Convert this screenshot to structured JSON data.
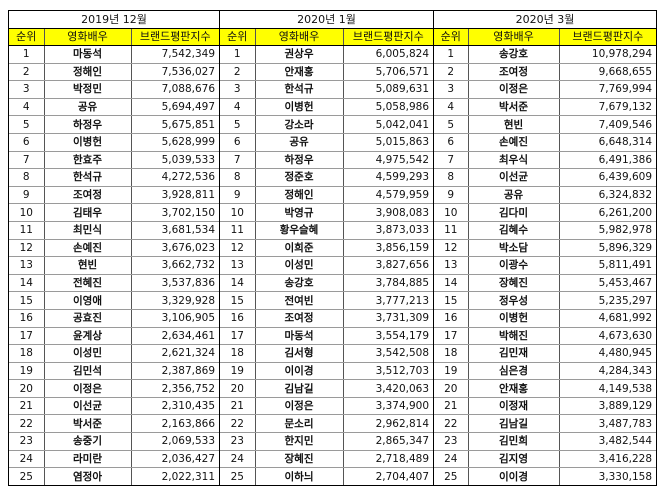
{
  "headers": {
    "rank": "순위",
    "actor": "영화배우",
    "index": "브랜드평판지수"
  },
  "colors": {
    "header_bg": "#FFFF00"
  },
  "tables": [
    {
      "title": "2019년 12월",
      "rows": [
        {
          "rank": "1",
          "name": "마동석",
          "value": "7,542,349"
        },
        {
          "rank": "2",
          "name": "정해인",
          "value": "7,536,027"
        },
        {
          "rank": "3",
          "name": "박정민",
          "value": "7,088,676"
        },
        {
          "rank": "4",
          "name": "공유",
          "value": "5,694,497"
        },
        {
          "rank": "5",
          "name": "하정우",
          "value": "5,675,851"
        },
        {
          "rank": "6",
          "name": "이병헌",
          "value": "5,628,999"
        },
        {
          "rank": "7",
          "name": "한효주",
          "value": "5,039,533"
        },
        {
          "rank": "8",
          "name": "한석규",
          "value": "4,272,536"
        },
        {
          "rank": "9",
          "name": "조여정",
          "value": "3,928,811"
        },
        {
          "rank": "10",
          "name": "김태우",
          "value": "3,702,150"
        },
        {
          "rank": "11",
          "name": "최민식",
          "value": "3,681,534"
        },
        {
          "rank": "12",
          "name": "손예진",
          "value": "3,676,023"
        },
        {
          "rank": "13",
          "name": "현빈",
          "value": "3,662,732"
        },
        {
          "rank": "14",
          "name": "전혜진",
          "value": "3,537,836"
        },
        {
          "rank": "15",
          "name": "이영애",
          "value": "3,329,928"
        },
        {
          "rank": "16",
          "name": "공효진",
          "value": "3,106,905"
        },
        {
          "rank": "17",
          "name": "윤계상",
          "value": "2,634,461"
        },
        {
          "rank": "18",
          "name": "이성민",
          "value": "2,621,324"
        },
        {
          "rank": "19",
          "name": "김민석",
          "value": "2,387,869"
        },
        {
          "rank": "20",
          "name": "이정은",
          "value": "2,356,752"
        },
        {
          "rank": "21",
          "name": "이선균",
          "value": "2,310,435"
        },
        {
          "rank": "22",
          "name": "박서준",
          "value": "2,163,866"
        },
        {
          "rank": "23",
          "name": "송중기",
          "value": "2,069,533"
        },
        {
          "rank": "24",
          "name": "라미란",
          "value": "2,036,427"
        },
        {
          "rank": "25",
          "name": "염정아",
          "value": "2,022,311"
        }
      ]
    },
    {
      "title": "2020년 1월",
      "rows": [
        {
          "rank": "1",
          "name": "권상우",
          "value": "6,005,824"
        },
        {
          "rank": "2",
          "name": "안재홍",
          "value": "5,706,571"
        },
        {
          "rank": "3",
          "name": "한석규",
          "value": "5,089,631"
        },
        {
          "rank": "4",
          "name": "이병헌",
          "value": "5,058,986"
        },
        {
          "rank": "5",
          "name": "강소라",
          "value": "5,042,041"
        },
        {
          "rank": "6",
          "name": "공유",
          "value": "5,015,863"
        },
        {
          "rank": "7",
          "name": "하정우",
          "value": "4,975,542"
        },
        {
          "rank": "8",
          "name": "정준호",
          "value": "4,599,293"
        },
        {
          "rank": "9",
          "name": "정해인",
          "value": "4,579,959"
        },
        {
          "rank": "10",
          "name": "박영규",
          "value": "3,908,083"
        },
        {
          "rank": "11",
          "name": "황우슬혜",
          "value": "3,873,033"
        },
        {
          "rank": "12",
          "name": "이희준",
          "value": "3,856,159"
        },
        {
          "rank": "13",
          "name": "이성민",
          "value": "3,827,656"
        },
        {
          "rank": "14",
          "name": "송강호",
          "value": "3,784,885"
        },
        {
          "rank": "15",
          "name": "전여빈",
          "value": "3,777,213"
        },
        {
          "rank": "16",
          "name": "조여정",
          "value": "3,731,309"
        },
        {
          "rank": "17",
          "name": "마동석",
          "value": "3,554,179"
        },
        {
          "rank": "18",
          "name": "김서형",
          "value": "3,542,508"
        },
        {
          "rank": "19",
          "name": "이이경",
          "value": "3,512,703"
        },
        {
          "rank": "20",
          "name": "김남길",
          "value": "3,420,063"
        },
        {
          "rank": "21",
          "name": "이정은",
          "value": "3,374,900"
        },
        {
          "rank": "22",
          "name": "문소리",
          "value": "2,962,814"
        },
        {
          "rank": "23",
          "name": "한지민",
          "value": "2,865,347"
        },
        {
          "rank": "24",
          "name": "장혜진",
          "value": "2,718,489"
        },
        {
          "rank": "25",
          "name": "이하늬",
          "value": "2,704,407"
        }
      ]
    },
    {
      "title": "2020년 3월",
      "rows": [
        {
          "rank": "1",
          "name": "송강호",
          "value": "10,978,294"
        },
        {
          "rank": "2",
          "name": "조여정",
          "value": "9,668,655"
        },
        {
          "rank": "3",
          "name": "이정은",
          "value": "7,769,994"
        },
        {
          "rank": "4",
          "name": "박서준",
          "value": "7,679,132"
        },
        {
          "rank": "5",
          "name": "현빈",
          "value": "7,409,546"
        },
        {
          "rank": "6",
          "name": "손예진",
          "value": "6,648,314"
        },
        {
          "rank": "7",
          "name": "최우식",
          "value": "6,491,386"
        },
        {
          "rank": "8",
          "name": "이선균",
          "value": "6,439,609"
        },
        {
          "rank": "9",
          "name": "공유",
          "value": "6,324,832"
        },
        {
          "rank": "10",
          "name": "김다미",
          "value": "6,261,200"
        },
        {
          "rank": "11",
          "name": "김혜수",
          "value": "5,982,978"
        },
        {
          "rank": "12",
          "name": "박소담",
          "value": "5,896,329"
        },
        {
          "rank": "13",
          "name": "이광수",
          "value": "5,811,491"
        },
        {
          "rank": "14",
          "name": "장혜진",
          "value": "5,453,467"
        },
        {
          "rank": "15",
          "name": "정우성",
          "value": "5,235,297"
        },
        {
          "rank": "16",
          "name": "이병헌",
          "value": "4,681,992"
        },
        {
          "rank": "17",
          "name": "박해진",
          "value": "4,673,630"
        },
        {
          "rank": "18",
          "name": "김민재",
          "value": "4,480,945"
        },
        {
          "rank": "19",
          "name": "심은경",
          "value": "4,284,343"
        },
        {
          "rank": "20",
          "name": "안재홍",
          "value": "4,149,538"
        },
        {
          "rank": "21",
          "name": "이정재",
          "value": "3,889,129"
        },
        {
          "rank": "22",
          "name": "김남길",
          "value": "3,487,783"
        },
        {
          "rank": "23",
          "name": "김민희",
          "value": "3,482,544"
        },
        {
          "rank": "24",
          "name": "김지영",
          "value": "3,416,228"
        },
        {
          "rank": "25",
          "name": "이이경",
          "value": "3,330,158"
        }
      ]
    }
  ]
}
